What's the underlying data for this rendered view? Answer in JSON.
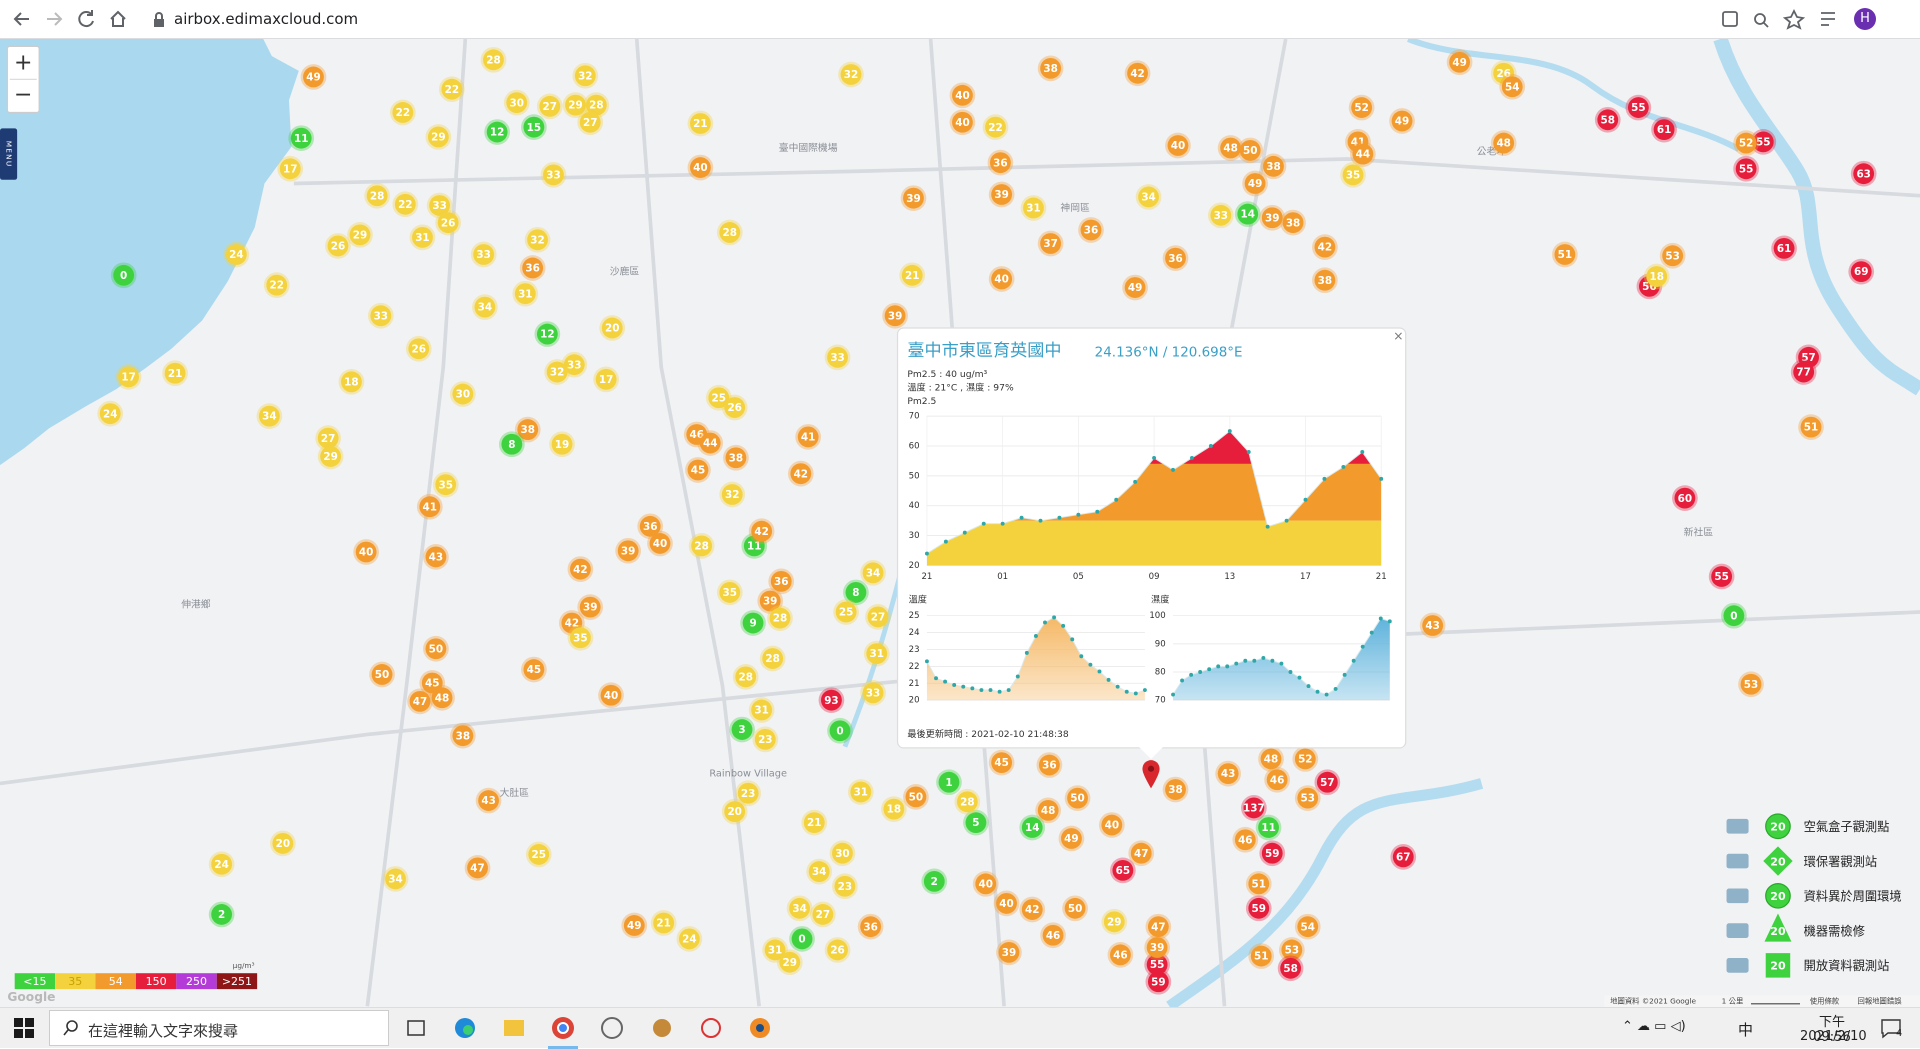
{
  "browser": {
    "url": "airbox.edimaxcloud.com",
    "profile": "H"
  },
  "map": {
    "zoom_in": "+",
    "zoom_out": "−",
    "menu": "MENU",
    "logo": "Google",
    "attribution": "地圖資料 ©2021 Google",
    "scale": "1 公里",
    "terms": "使用條款",
    "report": "回報地圖錯誤",
    "places": [
      "臺中國際機場",
      "沙鹿區",
      "神岡區",
      "新社區",
      "大肚區",
      "伸港鄉",
      "Rainbow Village",
      "公老坪"
    ],
    "markers": [
      49,
      28,
      32,
      22,
      22,
      30,
      27,
      29,
      28,
      27,
      12,
      15,
      11,
      29,
      17,
      33,
      28,
      22,
      33,
      29,
      31,
      26,
      26,
      32,
      33,
      24,
      0,
      22,
      36,
      31,
      33,
      34,
      12,
      20,
      33,
      32,
      17,
      18,
      26,
      30,
      17,
      21,
      24,
      34,
      27,
      29,
      38,
      8,
      19,
      35,
      41,
      40,
      43,
      21,
      40,
      32,
      40,
      40,
      22,
      36,
      39,
      39,
      38,
      42,
      31,
      37,
      36,
      40,
      21,
      40,
      48,
      50,
      38,
      34,
      33,
      14,
      39,
      38,
      49,
      42,
      38,
      52,
      49,
      41,
      44,
      35,
      49,
      26,
      54,
      48,
      58,
      55,
      61,
      55,
      55,
      52,
      63,
      51,
      53,
      56,
      61,
      69,
      57,
      77,
      51,
      60,
      55,
      0,
      53,
      43,
      67,
      36,
      49,
      46,
      44,
      45,
      38,
      41,
      42,
      32,
      36,
      40,
      39,
      28,
      11,
      42,
      42,
      39,
      42,
      35,
      50,
      50,
      45,
      47,
      48,
      38,
      45,
      40,
      93,
      0,
      8,
      25,
      9,
      3,
      43,
      47,
      49,
      21,
      0,
      2,
      20,
      24,
      43,
      48,
      52,
      57,
      46,
      137,
      53,
      46,
      59,
      11,
      51,
      59,
      54,
      51,
      53,
      58,
      55,
      59,
      65,
      47,
      40,
      50,
      14,
      48,
      49,
      39,
      47,
      39,
      46,
      38,
      36,
      45,
      1,
      5,
      2,
      40,
      40,
      42,
      50,
      29,
      46,
      28,
      50,
      18,
      34,
      27,
      31,
      33,
      31,
      31,
      23,
      23,
      20,
      21,
      30,
      34,
      23,
      34,
      27,
      36,
      31,
      29,
      26,
      25,
      34,
      24,
      35,
      36,
      39,
      28,
      28,
      28,
      18,
      33,
      39,
      25,
      26,
      28
    ]
  },
  "popup": {
    "title": "臺中市東區育英國中",
    "coords": "24.136°N / 120.698°E",
    "close": "×",
    "pm_line": "Pm2.5 : 40 ug/m³",
    "weather_line": "溫度 : 21°C , 濕度 : 97%",
    "updated": "最後更新時間 : 2021-02-10 21:48:38",
    "charts": [
      {
        "type": "area",
        "title": "Pm2.5",
        "ylim": [
          20,
          70
        ],
        "yticks": [
          20,
          30,
          40,
          50,
          60,
          70
        ],
        "x_labels": [
          "21",
          "01",
          "05",
          "09",
          "13",
          "17",
          "21"
        ],
        "values": [
          24,
          28,
          31,
          34,
          34,
          36,
          35,
          36,
          37,
          38,
          42,
          48,
          56,
          52,
          56,
          60,
          65,
          58,
          33,
          35,
          42,
          49,
          53,
          58,
          49
        ]
      },
      {
        "type": "area",
        "title": "溫度",
        "color": "#f5b967",
        "ylim": [
          20,
          25
        ],
        "yticks": [
          20,
          21,
          22,
          23,
          24,
          25
        ],
        "values": [
          22.3,
          21.3,
          21.1,
          20.9,
          20.8,
          20.7,
          20.6,
          20.6,
          20.5,
          20.6,
          21.4,
          22.8,
          23.8,
          24.6,
          24.9,
          24.4,
          23.6,
          22.6,
          22.1,
          21.7,
          21.2,
          20.8,
          20.5,
          20.4,
          20.6
        ]
      },
      {
        "type": "area",
        "title": "濕度",
        "color": "#5fb3dc",
        "ylim": [
          70,
          100
        ],
        "yticks": [
          70,
          80,
          90,
          100
        ],
        "values": [
          72,
          77,
          79,
          80,
          81,
          82,
          82,
          83,
          84,
          84,
          85,
          84,
          83,
          80,
          78,
          75,
          73,
          72,
          74,
          79,
          84,
          89,
          94,
          99,
          98
        ]
      }
    ]
  },
  "legend": {
    "unit": "μg/m³",
    "levels": [
      {
        "value": 15,
        "label": "<15",
        "color": "#3fd23f"
      },
      {
        "value": 35,
        "label": "35",
        "color": "#f3d23e"
      },
      {
        "value": 54,
        "label": "54",
        "color": "#f39a2d"
      },
      {
        "value": 150,
        "label": "150",
        "color": "#e61e3c"
      },
      {
        "value": 250,
        "label": "250",
        "color": "#b43bd8"
      },
      {
        "value": 251,
        "label": ">251",
        "color": "#8e1616"
      }
    ]
  },
  "stations": {
    "items": [
      {
        "label": "空氣盒子觀測點",
        "badge": "20"
      },
      {
        "label": "環保署觀測站",
        "badge": "20"
      },
      {
        "label": "資料異於周圍環境",
        "badge": "20"
      },
      {
        "label": "機器需檢修",
        "badge": "20"
      },
      {
        "label": "開放資料觀測站",
        "badge": "20"
      }
    ]
  },
  "taskbar": {
    "search": "在這裡輸入文字來搜尋",
    "ime": "中",
    "time": "下午 09:56",
    "date": "2021/2/10",
    "notifications": "4"
  }
}
